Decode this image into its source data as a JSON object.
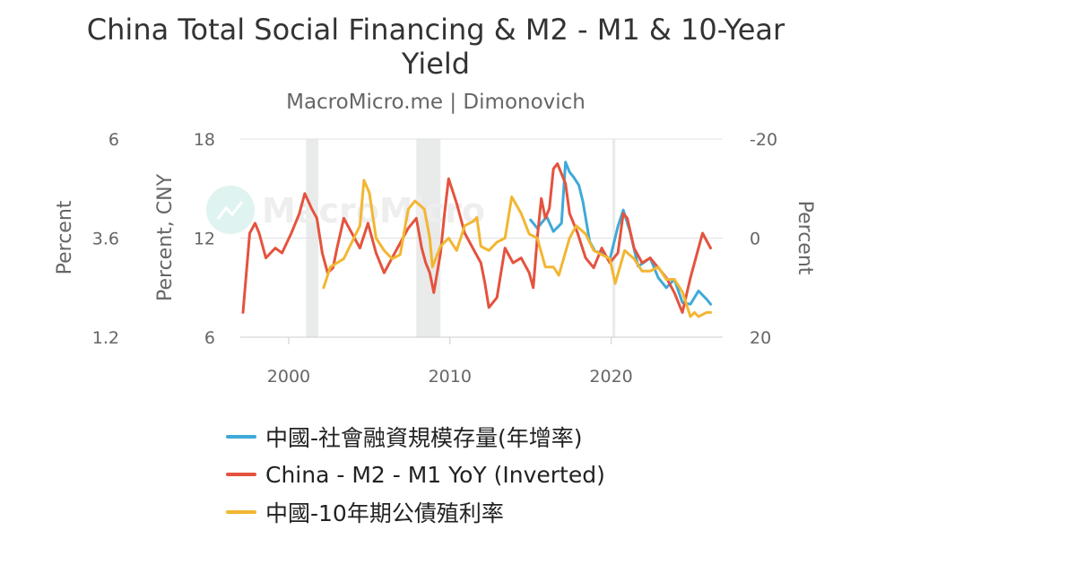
{
  "title": "China Total Social Financing & M2 - M1 & 10-Year Yield",
  "subtitle": "MacroMicro.me | Dimonovich",
  "watermark": "MacroMicro",
  "colors": {
    "series_tsf": "#3fa9d8",
    "series_m2m1": "#e4533e",
    "series_yield": "#f2b632",
    "recession_band": "#e9eaea",
    "grid": "#e0e0e0"
  },
  "chart_data": {
    "type": "line",
    "x_axis": {
      "type": "date",
      "ticks": [
        "2000",
        "2010",
        "2020"
      ],
      "range": [
        "1997-01",
        "2026-12"
      ]
    },
    "axes": {
      "left_outer": {
        "title": "Percent",
        "ticks": [
          "6",
          "3.6",
          "1.2"
        ],
        "ylim": [
          1.2,
          6
        ]
      },
      "left_inner": {
        "title": "Percent, CNY",
        "ticks": [
          "18",
          "12",
          "6"
        ],
        "ylim": [
          6,
          18
        ]
      },
      "right": {
        "title": "Percent",
        "ticks": [
          "-20",
          "0",
          "20"
        ],
        "ylim": [
          20,
          -20
        ],
        "inverted": true
      }
    },
    "shaded_periods": [
      [
        "2001-02",
        "2001-11"
      ],
      [
        "2007-12",
        "2009-06"
      ],
      [
        "2020-02",
        "2020-04"
      ]
    ],
    "grid": true,
    "legend_position": "bottom",
    "series": [
      {
        "name": "中國-社會融資規模存量(年增率)",
        "axis": "left_inner",
        "color": "#3fa9d8",
        "points": [
          [
            "2015-01",
            13.1
          ],
          [
            "2015-06",
            12.6
          ],
          [
            "2016-01",
            13.3
          ],
          [
            "2016-06",
            12.4
          ],
          [
            "2016-12",
            12.9
          ],
          [
            "2017-03",
            16.6
          ],
          [
            "2017-06",
            16.0
          ],
          [
            "2017-09",
            15.7
          ],
          [
            "2018-01",
            15.2
          ],
          [
            "2018-04",
            14.2
          ],
          [
            "2018-09",
            11.8
          ],
          [
            "2019-01",
            11.2
          ],
          [
            "2019-06",
            11.1
          ],
          [
            "2019-12",
            10.7
          ],
          [
            "2020-06",
            12.7
          ],
          [
            "2020-10",
            13.7
          ],
          [
            "2021-03",
            12.4
          ],
          [
            "2021-09",
            10.3
          ],
          [
            "2022-01",
            10.5
          ],
          [
            "2022-06",
            10.8
          ],
          [
            "2022-12",
            9.6
          ],
          [
            "2023-06",
            9.0
          ],
          [
            "2023-12",
            9.5
          ],
          [
            "2024-06",
            8.1
          ],
          [
            "2024-12",
            8.0
          ],
          [
            "2025-06",
            8.8
          ],
          [
            "2025-12",
            8.3
          ],
          [
            "2026-03",
            8.0
          ]
        ]
      },
      {
        "name": "China - M2 - M1 YoY (Inverted)",
        "axis": "right",
        "color": "#e4533e",
        "points": [
          [
            "1997-03",
            15
          ],
          [
            "1997-08",
            -1
          ],
          [
            "1997-12",
            -3
          ],
          [
            "1998-03",
            -1
          ],
          [
            "1998-08",
            4
          ],
          [
            "1999-03",
            2
          ],
          [
            "1999-08",
            3
          ],
          [
            "2000-03",
            -1
          ],
          [
            "2000-06",
            -3
          ],
          [
            "2000-09",
            -5
          ],
          [
            "2001-01",
            -9
          ],
          [
            "2001-06",
            -6
          ],
          [
            "2001-10",
            -4
          ],
          [
            "2002-02",
            3
          ],
          [
            "2002-06",
            7
          ],
          [
            "2002-10",
            6
          ],
          [
            "2003-01",
            2
          ],
          [
            "2003-06",
            -4
          ],
          [
            "2003-12",
            -1
          ],
          [
            "2004-06",
            2
          ],
          [
            "2004-12",
            -3
          ],
          [
            "2005-06",
            3
          ],
          [
            "2005-12",
            7
          ],
          [
            "2006-06",
            4
          ],
          [
            "2006-12",
            1
          ],
          [
            "2007-06",
            -2
          ],
          [
            "2007-12",
            -4
          ],
          [
            "2008-04",
            2
          ],
          [
            "2008-07",
            5
          ],
          [
            "2008-10",
            7
          ],
          [
            "2009-01",
            11
          ],
          [
            "2009-06",
            3
          ],
          [
            "2009-09",
            -5
          ],
          [
            "2009-12",
            -12
          ],
          [
            "2010-06",
            -7
          ],
          [
            "2010-12",
            -1
          ],
          [
            "2011-06",
            2
          ],
          [
            "2011-12",
            5
          ],
          [
            "2012-03",
            9
          ],
          [
            "2012-06",
            14
          ],
          [
            "2012-12",
            12
          ],
          [
            "2013-06",
            2
          ],
          [
            "2013-12",
            5
          ],
          [
            "2014-06",
            4
          ],
          [
            "2014-12",
            7
          ],
          [
            "2015-03",
            10
          ],
          [
            "2015-06",
            0
          ],
          [
            "2015-09",
            -8
          ],
          [
            "2015-12",
            -4
          ],
          [
            "2016-03",
            -6
          ],
          [
            "2016-06",
            -14
          ],
          [
            "2016-09",
            -15
          ],
          [
            "2016-12",
            -13
          ],
          [
            "2017-03",
            -11
          ],
          [
            "2017-06",
            -5
          ],
          [
            "2017-12",
            -1
          ],
          [
            "2018-06",
            4
          ],
          [
            "2018-12",
            6
          ],
          [
            "2019-06",
            2
          ],
          [
            "2019-12",
            5
          ],
          [
            "2020-06",
            3
          ],
          [
            "2020-10",
            -5
          ],
          [
            "2021-01",
            -4
          ],
          [
            "2021-06",
            2
          ],
          [
            "2021-12",
            5
          ],
          [
            "2022-06",
            4
          ],
          [
            "2022-12",
            6
          ],
          [
            "2023-06",
            8
          ],
          [
            "2023-12",
            11
          ],
          [
            "2024-06",
            15
          ],
          [
            "2024-12",
            8
          ],
          [
            "2025-06",
            2
          ],
          [
            "2025-09",
            -1
          ],
          [
            "2026-03",
            2
          ]
        ]
      },
      {
        "name": "中國-10年期公債殖利率",
        "axis": "left_outer",
        "color": "#f2b632",
        "points": [
          [
            "2002-03",
            2.4
          ],
          [
            "2002-08",
            2.9
          ],
          [
            "2003-01",
            3.0
          ],
          [
            "2003-06",
            3.1
          ],
          [
            "2003-12",
            3.5
          ],
          [
            "2004-06",
            3.9
          ],
          [
            "2004-09",
            5.0
          ],
          [
            "2005-01",
            4.7
          ],
          [
            "2005-06",
            3.6
          ],
          [
            "2005-12",
            3.3
          ],
          [
            "2006-06",
            3.1
          ],
          [
            "2006-12",
            3.2
          ],
          [
            "2007-06",
            4.3
          ],
          [
            "2007-11",
            4.5
          ],
          [
            "2008-06",
            4.3
          ],
          [
            "2008-10",
            3.6
          ],
          [
            "2008-12",
            2.9
          ],
          [
            "2009-06",
            3.4
          ],
          [
            "2009-12",
            3.6
          ],
          [
            "2010-06",
            3.3
          ],
          [
            "2010-12",
            3.9
          ],
          [
            "2011-06",
            4.0
          ],
          [
            "2011-09",
            4.1
          ],
          [
            "2011-12",
            3.4
          ],
          [
            "2012-06",
            3.3
          ],
          [
            "2012-12",
            3.5
          ],
          [
            "2013-06",
            3.6
          ],
          [
            "2013-11",
            4.6
          ],
          [
            "2014-06",
            4.2
          ],
          [
            "2014-12",
            3.7
          ],
          [
            "2015-06",
            3.6
          ],
          [
            "2015-12",
            2.9
          ],
          [
            "2016-06",
            2.9
          ],
          [
            "2016-10",
            2.7
          ],
          [
            "2017-06",
            3.6
          ],
          [
            "2017-11",
            3.9
          ],
          [
            "2018-06",
            3.7
          ],
          [
            "2018-12",
            3.3
          ],
          [
            "2019-06",
            3.2
          ],
          [
            "2019-12",
            3.1
          ],
          [
            "2020-04",
            2.5
          ],
          [
            "2020-11",
            3.3
          ],
          [
            "2021-06",
            3.1
          ],
          [
            "2021-12",
            2.8
          ],
          [
            "2022-06",
            2.8
          ],
          [
            "2022-12",
            2.9
          ],
          [
            "2023-06",
            2.6
          ],
          [
            "2023-12",
            2.6
          ],
          [
            "2024-06",
            2.3
          ],
          [
            "2024-12",
            1.7
          ],
          [
            "2025-03",
            1.8
          ],
          [
            "2025-06",
            1.7
          ],
          [
            "2025-12",
            1.8
          ],
          [
            "2026-03",
            1.8
          ]
        ]
      }
    ]
  }
}
